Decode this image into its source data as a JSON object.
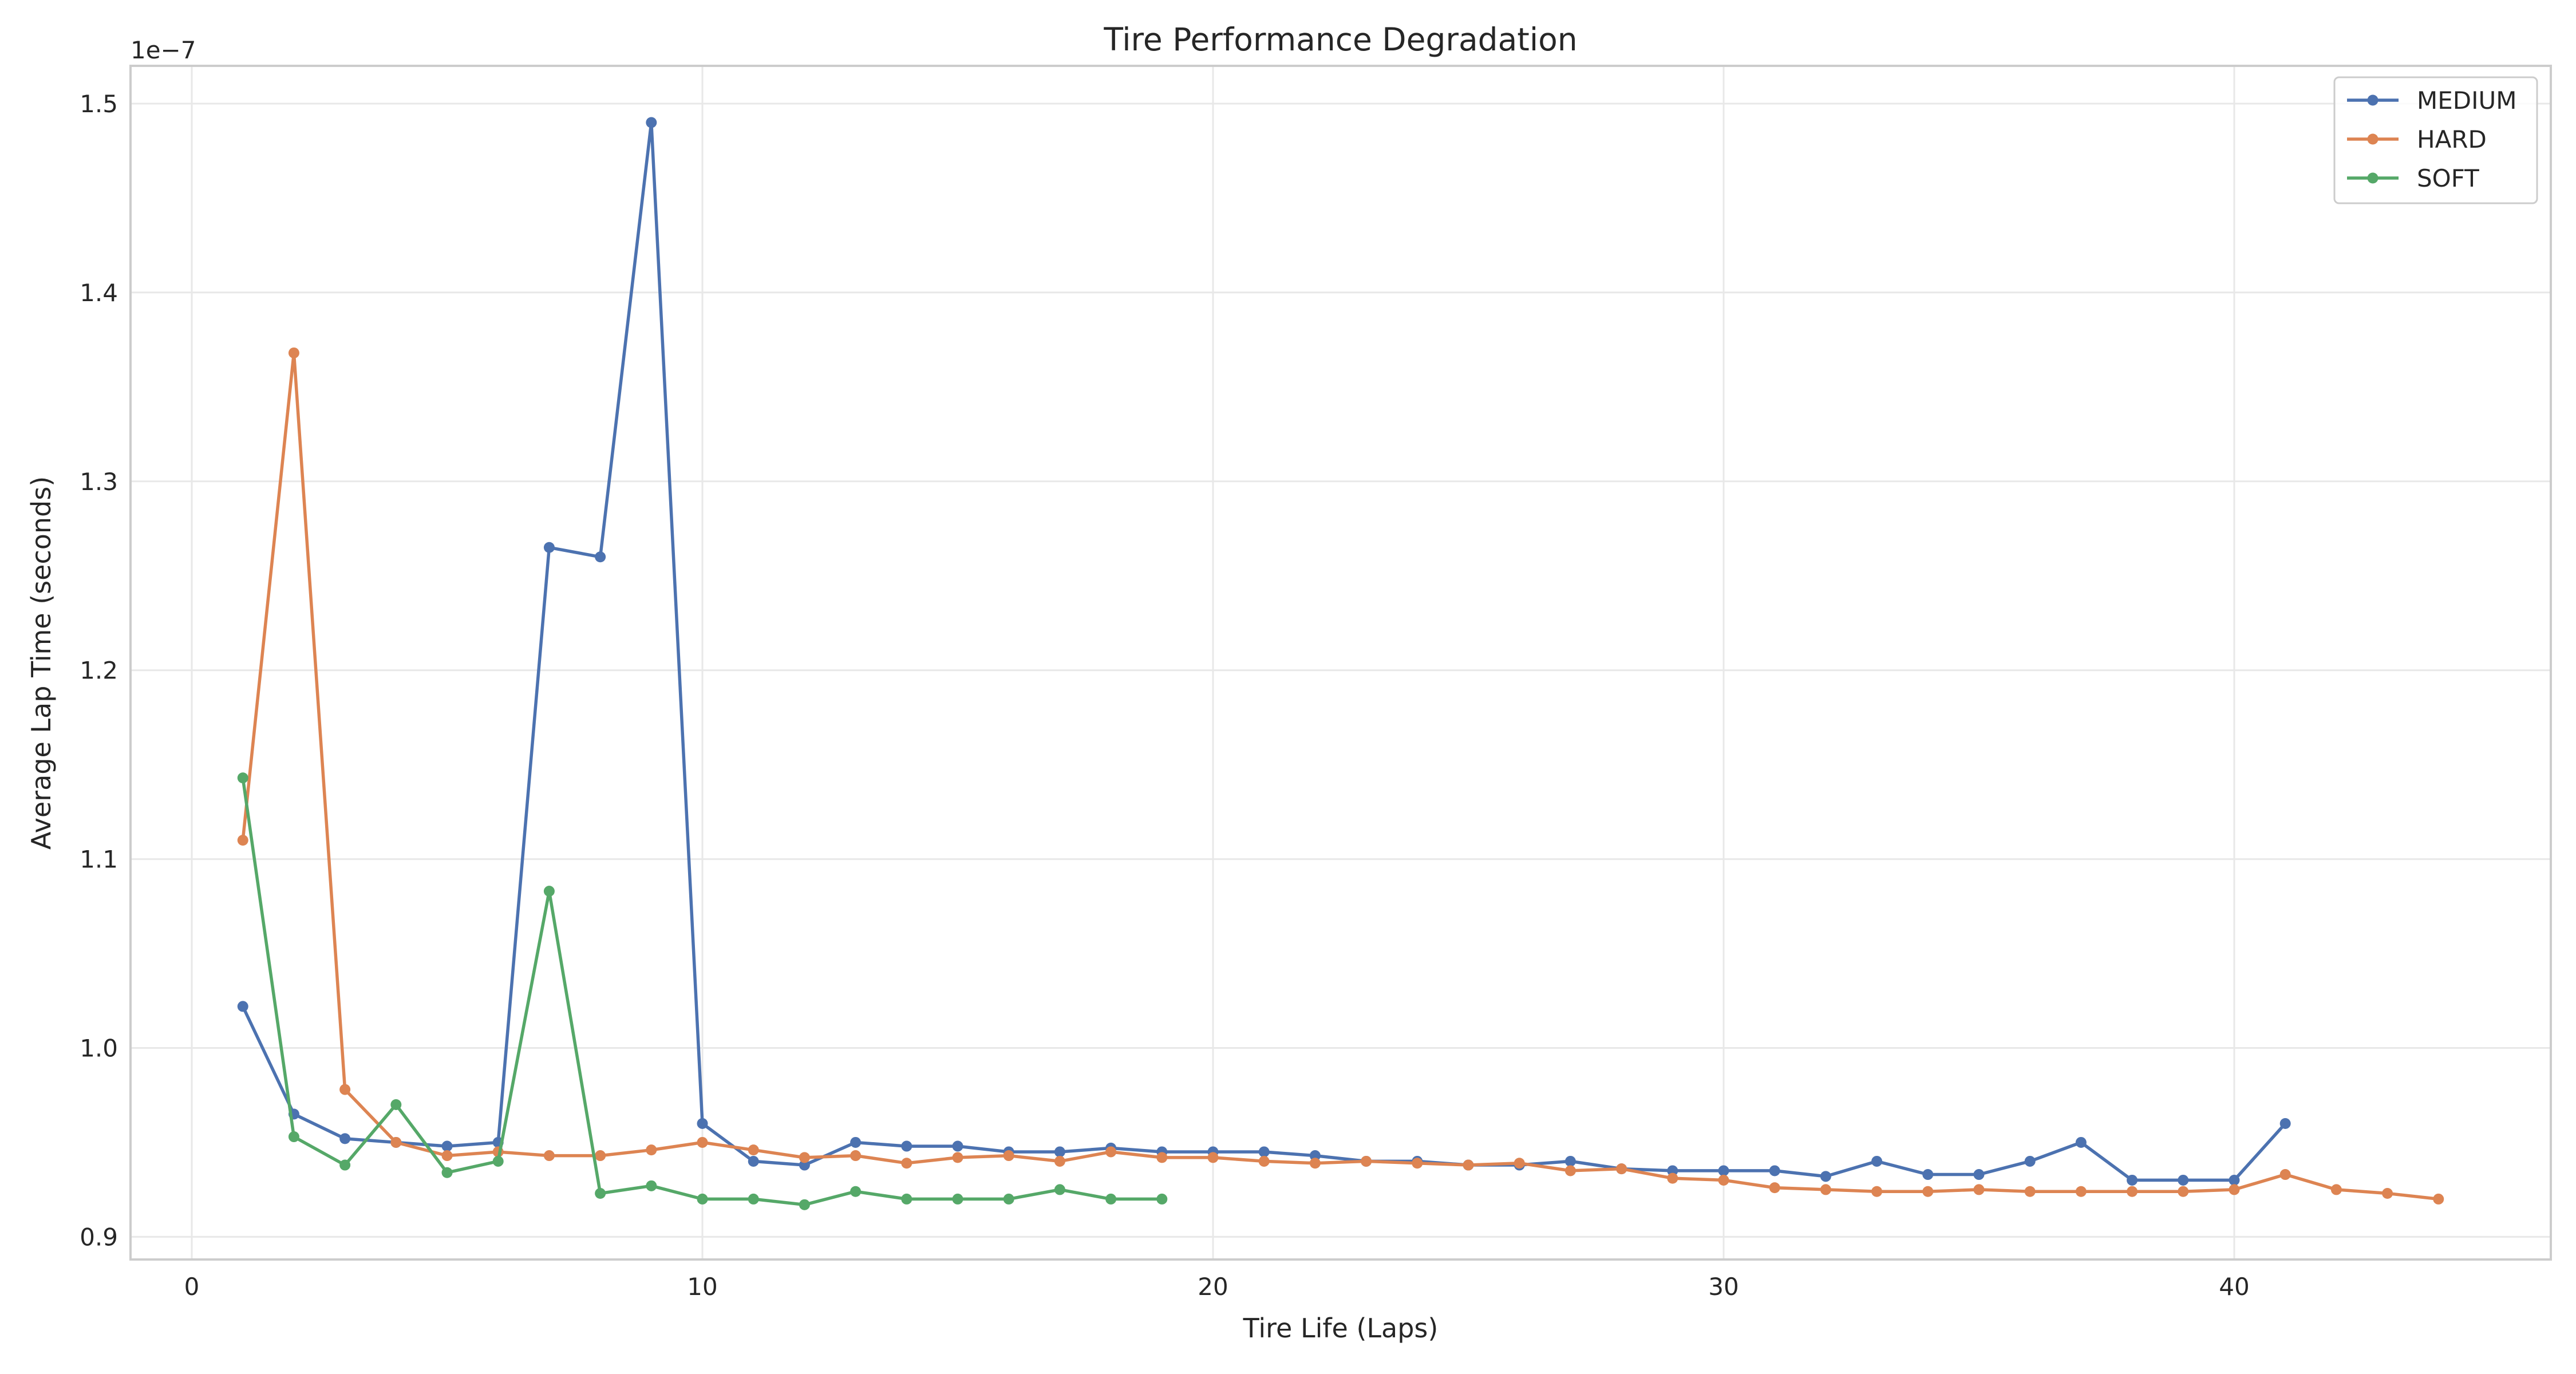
{
  "chart_data": {
    "type": "line",
    "title": "Tire Performance Degradation",
    "xlabel": "Tire Life (Laps)",
    "ylabel": "Average Lap Time (seconds)",
    "y_offset_label": "1e−7",
    "xlim": [
      -1.2,
      46.2
    ],
    "ylim": [
      0.888,
      1.52
    ],
    "x_ticks": [
      0,
      10,
      20,
      30,
      40
    ],
    "y_ticks": [
      0.9,
      1.0,
      1.1,
      1.2,
      1.3,
      1.4,
      1.5
    ],
    "y_tick_labels": [
      "0.9",
      "1.0",
      "1.1",
      "1.2",
      "1.3",
      "1.4",
      "1.5"
    ],
    "grid": true,
    "legend_position": "top-right",
    "colors": {
      "MEDIUM": "#4c72b0",
      "HARD": "#dd8452",
      "SOFT": "#55a868"
    },
    "series": [
      {
        "name": "MEDIUM",
        "x": [
          1,
          2,
          3,
          4,
          5,
          6,
          7,
          8,
          9,
          10,
          11,
          12,
          13,
          14,
          15,
          16,
          17,
          18,
          19,
          20,
          21,
          22,
          23,
          24,
          25,
          26,
          27,
          28,
          29,
          30,
          31,
          32,
          33,
          34,
          35,
          36,
          37,
          38,
          39,
          40,
          41
        ],
        "y": [
          1.022,
          0.965,
          0.952,
          0.95,
          0.948,
          0.95,
          1.265,
          1.26,
          1.49,
          0.96,
          0.94,
          0.938,
          0.95,
          0.948,
          0.948,
          0.945,
          0.945,
          0.947,
          0.945,
          0.945,
          0.945,
          0.943,
          0.94,
          0.94,
          0.938,
          0.938,
          0.94,
          0.936,
          0.935,
          0.935,
          0.935,
          0.932,
          0.94,
          0.933,
          0.933,
          0.94,
          0.95,
          0.93,
          0.93,
          0.93,
          0.96
        ]
      },
      {
        "name": "HARD",
        "x": [
          1,
          2,
          3,
          4,
          5,
          6,
          7,
          8,
          9,
          10,
          11,
          12,
          13,
          14,
          15,
          16,
          17,
          18,
          19,
          20,
          21,
          22,
          23,
          24,
          25,
          26,
          27,
          28,
          29,
          30,
          31,
          32,
          33,
          34,
          35,
          36,
          37,
          38,
          39,
          40,
          41,
          42,
          43,
          44
        ],
        "y": [
          1.11,
          1.368,
          0.978,
          0.95,
          0.943,
          0.945,
          0.943,
          0.943,
          0.946,
          0.95,
          0.946,
          0.942,
          0.943,
          0.939,
          0.942,
          0.943,
          0.94,
          0.945,
          0.942,
          0.942,
          0.94,
          0.939,
          0.94,
          0.939,
          0.938,
          0.939,
          0.935,
          0.936,
          0.931,
          0.93,
          0.926,
          0.925,
          0.924,
          0.924,
          0.925,
          0.924,
          0.924,
          0.924,
          0.924,
          0.925,
          0.933,
          0.925,
          0.923,
          0.92
        ]
      },
      {
        "name": "SOFT",
        "x": [
          1,
          2,
          3,
          4,
          5,
          6,
          7,
          8,
          9,
          10,
          11,
          12,
          13,
          14,
          15,
          16,
          17,
          18,
          19
        ],
        "y": [
          1.143,
          0.953,
          0.938,
          0.97,
          0.934,
          0.94,
          1.083,
          0.923,
          0.927,
          0.92,
          0.92,
          0.917,
          0.924,
          0.92,
          0.92,
          0.92,
          0.925,
          0.92,
          0.92
        ]
      }
    ]
  }
}
